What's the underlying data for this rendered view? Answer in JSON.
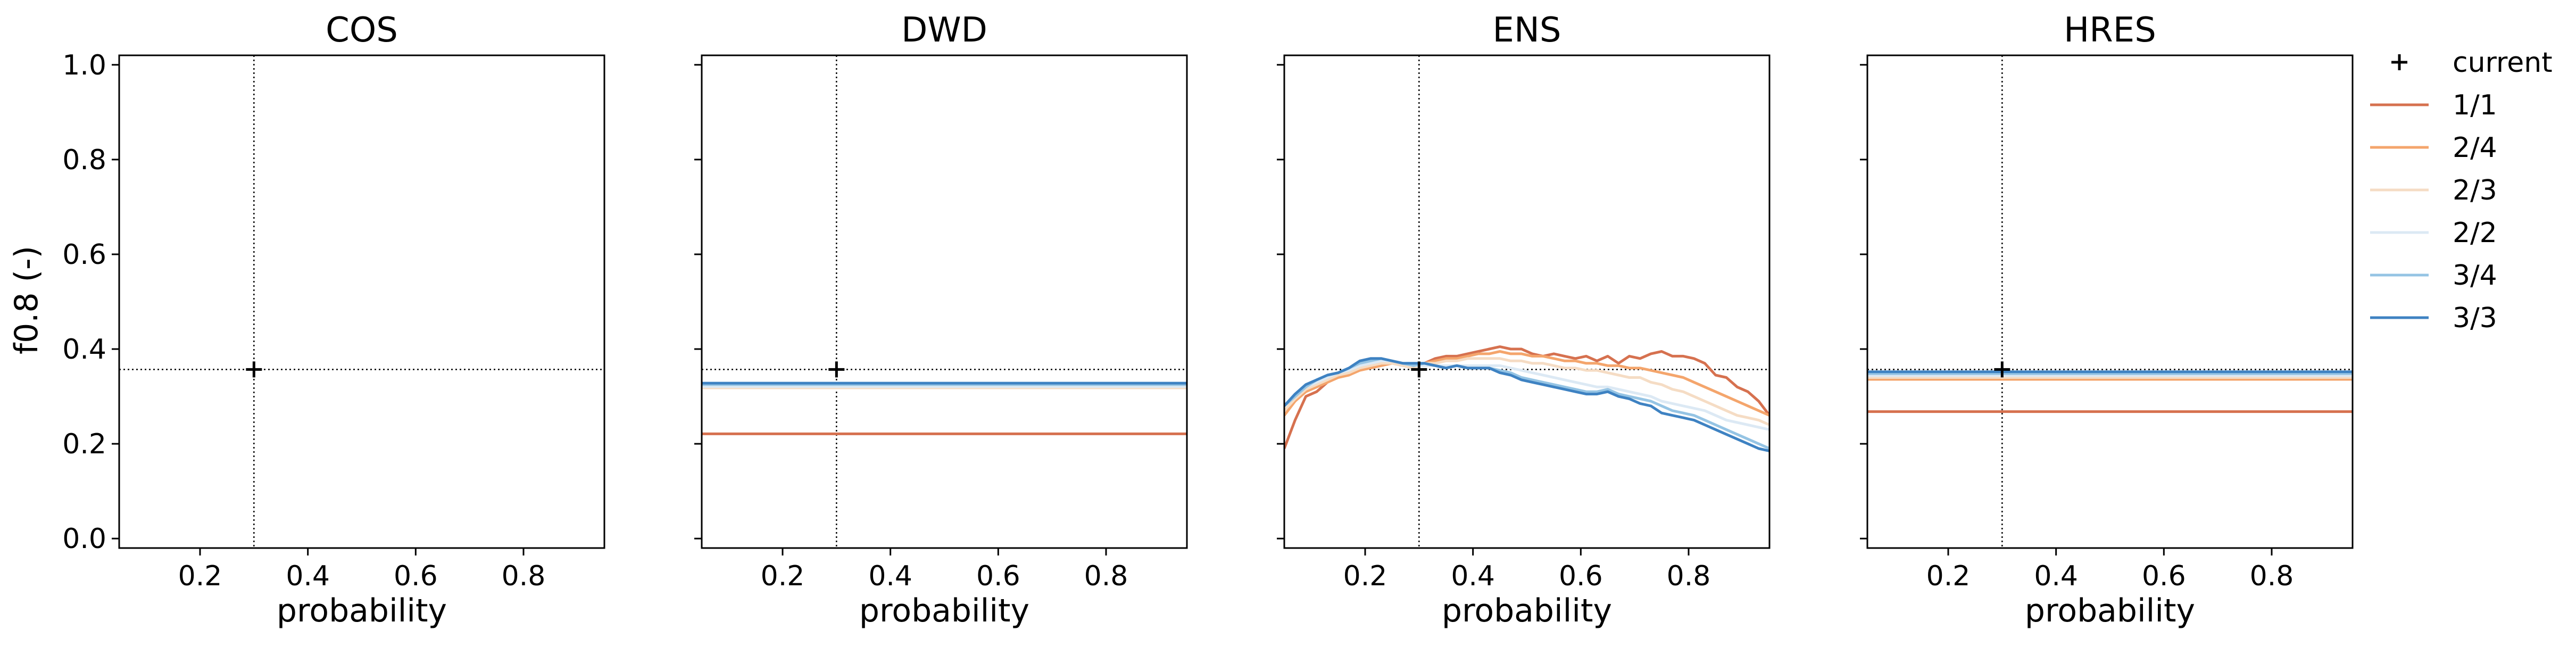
{
  "chart_data": {
    "type": "line",
    "ylabel": "f0.8 (-)",
    "ylim": [
      -0.02,
      1.02
    ],
    "yticks": [
      0.0,
      0.2,
      0.4,
      0.6,
      0.8,
      1.0
    ],
    "ytick_labels": [
      "0.0",
      "0.2",
      "0.4",
      "0.6",
      "0.8",
      "1.0"
    ],
    "xlim": [
      0.05,
      0.95
    ],
    "xticks": [
      0.2,
      0.4,
      0.6,
      0.8
    ],
    "xtick_labels": [
      "0.2",
      "0.4",
      "0.6",
      "0.8"
    ],
    "grid": false,
    "legend_placement": "outside-right",
    "current_point": {
      "x": 0.3,
      "y": 0.357
    },
    "legend": [
      {
        "label": "current",
        "marker": "+",
        "color": "#000000"
      },
      {
        "label": "1/1",
        "color": "#d6714f"
      },
      {
        "label": "2/4",
        "color": "#f4a56c"
      },
      {
        "label": "2/3",
        "color": "#f5dcc4"
      },
      {
        "label": "2/2",
        "color": "#dce9f4"
      },
      {
        "label": "3/4",
        "color": "#95c4e4"
      },
      {
        "label": "3/3",
        "color": "#3e82c2"
      }
    ],
    "panels": [
      {
        "title": "COS",
        "xlabel": "probability",
        "series": []
      },
      {
        "title": "DWD",
        "xlabel": "probability",
        "series": [
          {
            "name": "1/1",
            "color": "#d6714f",
            "x": [
              0.05,
              0.95
            ],
            "y": [
              0.221,
              0.221
            ]
          },
          {
            "name": "2/3",
            "color": "#f5dcc4",
            "x": [
              0.05,
              0.95
            ],
            "y": [
              0.318,
              0.318
            ]
          },
          {
            "name": "2/2",
            "color": "#dce9f4",
            "x": [
              0.05,
              0.95
            ],
            "y": [
              0.321,
              0.321
            ]
          },
          {
            "name": "3/4",
            "color": "#95c4e4",
            "x": [
              0.05,
              0.95
            ],
            "y": [
              0.325,
              0.325
            ]
          },
          {
            "name": "3/3",
            "color": "#3e82c2",
            "x": [
              0.05,
              0.95
            ],
            "y": [
              0.328,
              0.328
            ]
          }
        ]
      },
      {
        "title": "ENS",
        "xlabel": "probability",
        "series": [
          {
            "name": "1/1",
            "color": "#d6714f",
            "x": [
              0.05,
              0.07,
              0.09,
              0.11,
              0.13,
              0.15,
              0.17,
              0.19,
              0.21,
              0.23,
              0.25,
              0.27,
              0.29,
              0.31,
              0.33,
              0.35,
              0.37,
              0.39,
              0.41,
              0.43,
              0.45,
              0.47,
              0.49,
              0.51,
              0.53,
              0.55,
              0.57,
              0.59,
              0.61,
              0.63,
              0.65,
              0.67,
              0.69,
              0.71,
              0.73,
              0.75,
              0.77,
              0.79,
              0.81,
              0.83,
              0.85,
              0.87,
              0.89,
              0.91,
              0.93,
              0.95
            ],
            "y": [
              0.19,
              0.25,
              0.3,
              0.31,
              0.33,
              0.34,
              0.35,
              0.36,
              0.36,
              0.37,
              0.375,
              0.37,
              0.365,
              0.37,
              0.38,
              0.385,
              0.385,
              0.39,
              0.395,
              0.4,
              0.405,
              0.4,
              0.4,
              0.39,
              0.385,
              0.39,
              0.385,
              0.38,
              0.385,
              0.375,
              0.385,
              0.37,
              0.385,
              0.38,
              0.39,
              0.395,
              0.385,
              0.385,
              0.38,
              0.37,
              0.345,
              0.34,
              0.32,
              0.31,
              0.29,
              0.26
            ]
          },
          {
            "name": "2/4",
            "color": "#f4a56c",
            "x": [
              0.05,
              0.07,
              0.09,
              0.11,
              0.13,
              0.15,
              0.17,
              0.19,
              0.21,
              0.23,
              0.25,
              0.27,
              0.29,
              0.31,
              0.33,
              0.35,
              0.37,
              0.39,
              0.41,
              0.43,
              0.45,
              0.47,
              0.49,
              0.51,
              0.53,
              0.55,
              0.57,
              0.59,
              0.61,
              0.63,
              0.65,
              0.67,
              0.69,
              0.71,
              0.73,
              0.75,
              0.77,
              0.79,
              0.81,
              0.83,
              0.85,
              0.87,
              0.89,
              0.91,
              0.93,
              0.95
            ],
            "y": [
              0.26,
              0.29,
              0.31,
              0.32,
              0.33,
              0.34,
              0.345,
              0.355,
              0.36,
              0.365,
              0.37,
              0.365,
              0.36,
              0.37,
              0.375,
              0.38,
              0.38,
              0.385,
              0.39,
              0.39,
              0.395,
              0.39,
              0.39,
              0.385,
              0.385,
              0.38,
              0.375,
              0.375,
              0.37,
              0.37,
              0.365,
              0.365,
              0.36,
              0.36,
              0.355,
              0.35,
              0.345,
              0.34,
              0.33,
              0.32,
              0.31,
              0.3,
              0.29,
              0.28,
              0.27,
              0.26
            ]
          },
          {
            "name": "2/3",
            "color": "#f5dcc4",
            "x": [
              0.05,
              0.07,
              0.09,
              0.11,
              0.13,
              0.15,
              0.17,
              0.19,
              0.21,
              0.23,
              0.25,
              0.27,
              0.29,
              0.31,
              0.33,
              0.35,
              0.37,
              0.39,
              0.41,
              0.43,
              0.45,
              0.47,
              0.49,
              0.51,
              0.53,
              0.55,
              0.57,
              0.59,
              0.61,
              0.63,
              0.65,
              0.67,
              0.69,
              0.71,
              0.73,
              0.75,
              0.77,
              0.79,
              0.81,
              0.83,
              0.85,
              0.87,
              0.89,
              0.91,
              0.93,
              0.95
            ],
            "y": [
              0.27,
              0.295,
              0.315,
              0.325,
              0.335,
              0.345,
              0.35,
              0.36,
              0.365,
              0.37,
              0.37,
              0.365,
              0.36,
              0.37,
              0.37,
              0.375,
              0.375,
              0.38,
              0.38,
              0.38,
              0.38,
              0.375,
              0.375,
              0.37,
              0.37,
              0.365,
              0.36,
              0.36,
              0.355,
              0.355,
              0.35,
              0.345,
              0.34,
              0.34,
              0.33,
              0.325,
              0.315,
              0.31,
              0.3,
              0.29,
              0.28,
              0.27,
              0.26,
              0.255,
              0.25,
              0.24
            ]
          },
          {
            "name": "2/2",
            "color": "#dce9f4",
            "x": [
              0.05,
              0.07,
              0.09,
              0.11,
              0.13,
              0.15,
              0.17,
              0.19,
              0.21,
              0.23,
              0.25,
              0.27,
              0.29,
              0.31,
              0.33,
              0.35,
              0.37,
              0.39,
              0.41,
              0.43,
              0.45,
              0.47,
              0.49,
              0.51,
              0.53,
              0.55,
              0.57,
              0.59,
              0.61,
              0.63,
              0.65,
              0.67,
              0.69,
              0.71,
              0.73,
              0.75,
              0.77,
              0.79,
              0.81,
              0.83,
              0.85,
              0.87,
              0.89,
              0.91,
              0.93,
              0.95
            ],
            "y": [
              0.28,
              0.3,
              0.32,
              0.33,
              0.34,
              0.35,
              0.355,
              0.365,
              0.37,
              0.375,
              0.375,
              0.37,
              0.365,
              0.365,
              0.365,
              0.365,
              0.365,
              0.365,
              0.365,
              0.365,
              0.365,
              0.36,
              0.355,
              0.35,
              0.345,
              0.34,
              0.335,
              0.33,
              0.325,
              0.32,
              0.32,
              0.315,
              0.31,
              0.305,
              0.3,
              0.29,
              0.285,
              0.28,
              0.275,
              0.27,
              0.26,
              0.25,
              0.245,
              0.24,
              0.235,
              0.23
            ]
          },
          {
            "name": "3/4",
            "color": "#95c4e4",
            "x": [
              0.05,
              0.07,
              0.09,
              0.11,
              0.13,
              0.15,
              0.17,
              0.19,
              0.21,
              0.23,
              0.25,
              0.27,
              0.29,
              0.31,
              0.33,
              0.35,
              0.37,
              0.39,
              0.41,
              0.43,
              0.45,
              0.47,
              0.49,
              0.51,
              0.53,
              0.55,
              0.57,
              0.59,
              0.61,
              0.63,
              0.65,
              0.67,
              0.69,
              0.71,
              0.73,
              0.75,
              0.77,
              0.79,
              0.81,
              0.83,
              0.85,
              0.87,
              0.89,
              0.91,
              0.93,
              0.95
            ],
            "y": [
              0.28,
              0.3,
              0.32,
              0.335,
              0.345,
              0.35,
              0.36,
              0.37,
              0.375,
              0.38,
              0.375,
              0.37,
              0.365,
              0.37,
              0.365,
              0.36,
              0.365,
              0.36,
              0.36,
              0.36,
              0.355,
              0.35,
              0.34,
              0.335,
              0.33,
              0.325,
              0.32,
              0.315,
              0.31,
              0.31,
              0.315,
              0.305,
              0.3,
              0.295,
              0.29,
              0.28,
              0.27,
              0.265,
              0.26,
              0.25,
              0.24,
              0.23,
              0.22,
              0.21,
              0.2,
              0.19
            ]
          },
          {
            "name": "3/3",
            "color": "#3e82c2",
            "x": [
              0.05,
              0.07,
              0.09,
              0.11,
              0.13,
              0.15,
              0.17,
              0.19,
              0.21,
              0.23,
              0.25,
              0.27,
              0.29,
              0.31,
              0.33,
              0.35,
              0.37,
              0.39,
              0.41,
              0.43,
              0.45,
              0.47,
              0.49,
              0.51,
              0.53,
              0.55,
              0.57,
              0.59,
              0.61,
              0.63,
              0.65,
              0.67,
              0.69,
              0.71,
              0.73,
              0.75,
              0.77,
              0.79,
              0.81,
              0.83,
              0.85,
              0.87,
              0.89,
              0.91,
              0.93,
              0.95
            ],
            "y": [
              0.28,
              0.305,
              0.325,
              0.335,
              0.345,
              0.35,
              0.36,
              0.375,
              0.38,
              0.38,
              0.375,
              0.37,
              0.37,
              0.37,
              0.365,
              0.36,
              0.365,
              0.36,
              0.36,
              0.36,
              0.35,
              0.345,
              0.335,
              0.33,
              0.325,
              0.32,
              0.315,
              0.31,
              0.305,
              0.305,
              0.31,
              0.3,
              0.295,
              0.285,
              0.28,
              0.265,
              0.26,
              0.255,
              0.25,
              0.24,
              0.23,
              0.22,
              0.21,
              0.2,
              0.19,
              0.185
            ]
          }
        ]
      },
      {
        "title": "HRES",
        "xlabel": "probability",
        "series": [
          {
            "name": "1/1",
            "color": "#d6714f",
            "x": [
              0.05,
              0.95
            ],
            "y": [
              0.268,
              0.268
            ]
          },
          {
            "name": "2/4",
            "color": "#f4a56c",
            "x": [
              0.05,
              0.95
            ],
            "y": [
              0.336,
              0.336
            ]
          },
          {
            "name": "2/3",
            "color": "#f5dcc4",
            "x": [
              0.05,
              0.95
            ],
            "y": [
              0.34,
              0.34
            ]
          },
          {
            "name": "2/2",
            "color": "#dce9f4",
            "x": [
              0.05,
              0.95
            ],
            "y": [
              0.344,
              0.344
            ]
          },
          {
            "name": "3/4",
            "color": "#95c4e4",
            "x": [
              0.05,
              0.95
            ],
            "y": [
              0.348,
              0.348
            ]
          },
          {
            "name": "3/3",
            "color": "#3e82c2",
            "x": [
              0.05,
              0.95
            ],
            "y": [
              0.352,
              0.352
            ]
          }
        ]
      }
    ]
  }
}
